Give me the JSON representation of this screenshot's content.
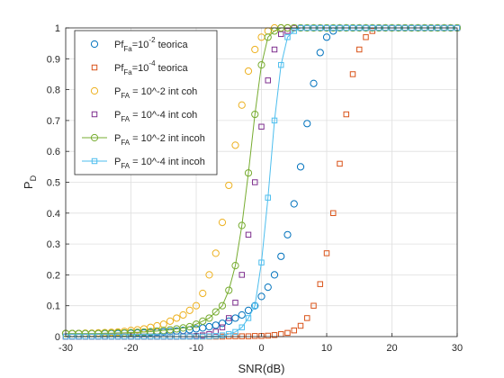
{
  "chart_data": {
    "type": "scatter",
    "title": "",
    "xlabel": "SNR(dB)",
    "ylabel": {
      "base": "P",
      "sub": "D"
    },
    "xlim": [
      -30,
      30
    ],
    "ylim": [
      0,
      1
    ],
    "xticks": [
      -30,
      -20,
      -10,
      0,
      10,
      20,
      30
    ],
    "yticks": [
      0,
      0.1,
      0.2,
      0.3,
      0.4,
      0.5,
      0.6,
      0.7,
      0.8,
      0.9,
      1
    ],
    "grid": true,
    "legend_position": "top-left",
    "legend": [
      {
        "parts": [
          [
            "Pf",
            ""
          ],
          [
            "Fa",
            "sub"
          ],
          [
            "=10",
            ""
          ],
          [
            "-2",
            "sup"
          ],
          [
            " teorica",
            ""
          ]
        ]
      },
      {
        "parts": [
          [
            "Pf",
            ""
          ],
          [
            "Fa",
            "sub"
          ],
          [
            "=10",
            ""
          ],
          [
            "-4",
            "sup"
          ],
          [
            " teorica",
            ""
          ]
        ]
      },
      {
        "parts": [
          [
            "P",
            ""
          ],
          [
            "FA",
            "sub"
          ],
          [
            " = 10^-2 int coh",
            ""
          ]
        ]
      },
      {
        "parts": [
          [
            "P",
            ""
          ],
          [
            "FA",
            "sub"
          ],
          [
            " = 10^-4 int coh",
            ""
          ]
        ]
      },
      {
        "parts": [
          [
            "P",
            ""
          ],
          [
            "FA",
            "sub"
          ],
          [
            " = 10^-2 int incoh",
            ""
          ]
        ]
      },
      {
        "parts": [
          [
            "P",
            ""
          ],
          [
            "FA",
            "sub"
          ],
          [
            " = 10^-4 int incoh",
            ""
          ]
        ]
      }
    ],
    "series": [
      {
        "color": "#0072BD",
        "marker": "circle",
        "line": false,
        "x": [
          -30,
          -29,
          -28,
          -27,
          -26,
          -25,
          -24,
          -23,
          -22,
          -21,
          -20,
          -19,
          -18,
          -17,
          -16,
          -15,
          -14,
          -13,
          -12,
          -11,
          -10,
          -9,
          -8,
          -7,
          -6,
          -5,
          -4,
          -3,
          -2,
          -1,
          0,
          1,
          2,
          3,
          4,
          5,
          6,
          7,
          8,
          9,
          10,
          11,
          12,
          13,
          14,
          15,
          16,
          17,
          18,
          19,
          20,
          21,
          22,
          23,
          24,
          25,
          26,
          27,
          28,
          29,
          30
        ],
        "y": [
          0.01,
          0.01,
          0.01,
          0.01,
          0.01,
          0.01,
          0.01,
          0.01,
          0.01,
          0.011,
          0.011,
          0.012,
          0.012,
          0.013,
          0.014,
          0.015,
          0.016,
          0.018,
          0.02,
          0.022,
          0.025,
          0.028,
          0.032,
          0.037,
          0.043,
          0.05,
          0.06,
          0.07,
          0.085,
          0.1,
          0.13,
          0.16,
          0.2,
          0.26,
          0.33,
          0.43,
          0.55,
          0.69,
          0.82,
          0.92,
          0.97,
          0.99,
          1,
          1,
          1,
          1,
          1,
          1,
          1,
          1,
          1,
          1,
          1,
          1,
          1,
          1,
          1,
          1,
          1,
          1,
          1
        ]
      },
      {
        "color": "#D95319",
        "marker": "square",
        "line": false,
        "x": [
          -30,
          -29,
          -28,
          -27,
          -26,
          -25,
          -24,
          -23,
          -22,
          -21,
          -20,
          -19,
          -18,
          -17,
          -16,
          -15,
          -14,
          -13,
          -12,
          -11,
          -10,
          -9,
          -8,
          -7,
          -6,
          -5,
          -4,
          -3,
          -2,
          -1,
          0,
          1,
          2,
          3,
          4,
          5,
          6,
          7,
          8,
          9,
          10,
          11,
          12,
          13,
          14,
          15,
          16,
          17,
          18,
          19,
          20,
          21,
          22,
          23,
          24,
          25,
          26,
          27,
          28,
          29,
          30
        ],
        "y": [
          0,
          0,
          0,
          0,
          0,
          0,
          0,
          0,
          0,
          0,
          0,
          0,
          0,
          0,
          0,
          0,
          0,
          0,
          0,
          0,
          0,
          0,
          0,
          0,
          0,
          0.001,
          0.001,
          0.001,
          0.001,
          0.002,
          0.002,
          0.003,
          0.005,
          0.008,
          0.012,
          0.02,
          0.035,
          0.06,
          0.1,
          0.17,
          0.27,
          0.4,
          0.56,
          0.72,
          0.85,
          0.93,
          0.97,
          0.99,
          1,
          1,
          1,
          1,
          1,
          1,
          1,
          1,
          1,
          1,
          1,
          1,
          1
        ]
      },
      {
        "color": "#EDB120",
        "marker": "circle",
        "line": false,
        "x": [
          -30,
          -29,
          -28,
          -27,
          -26,
          -25,
          -24,
          -23,
          -22,
          -21,
          -20,
          -19,
          -18,
          -17,
          -16,
          -15,
          -14,
          -13,
          -12,
          -11,
          -10,
          -9,
          -8,
          -7,
          -6,
          -5,
          -4,
          -3,
          -2,
          -1,
          0,
          1,
          2,
          3,
          4,
          5,
          6,
          7,
          8,
          9,
          10,
          11,
          12,
          13,
          14,
          15,
          16,
          17,
          18,
          19,
          20,
          21,
          22,
          23,
          24,
          25,
          26,
          27,
          28,
          29,
          30
        ],
        "y": [
          0.01,
          0.01,
          0.01,
          0.011,
          0.011,
          0.012,
          0.013,
          0.014,
          0.015,
          0.017,
          0.02,
          0.022,
          0.025,
          0.03,
          0.035,
          0.04,
          0.05,
          0.06,
          0.07,
          0.085,
          0.1,
          0.14,
          0.2,
          0.27,
          0.37,
          0.49,
          0.62,
          0.75,
          0.86,
          0.93,
          0.97,
          0.99,
          1,
          1,
          1,
          1,
          1,
          1,
          1,
          1,
          1,
          1,
          1,
          1,
          1,
          1,
          1,
          1,
          1,
          1,
          1,
          1,
          1,
          1,
          1,
          1,
          1,
          1,
          1,
          1,
          1
        ]
      },
      {
        "color": "#7E2F8E",
        "marker": "square",
        "line": false,
        "x": [
          -30,
          -29,
          -28,
          -27,
          -26,
          -25,
          -24,
          -23,
          -22,
          -21,
          -20,
          -19,
          -18,
          -17,
          -16,
          -15,
          -14,
          -13,
          -12,
          -11,
          -10,
          -9,
          -8,
          -7,
          -6,
          -5,
          -4,
          -3,
          -2,
          -1,
          0,
          1,
          2,
          3,
          4,
          5,
          6,
          7,
          8,
          9,
          10,
          11,
          12,
          13,
          14,
          15,
          16,
          17,
          18,
          19,
          20,
          21,
          22,
          23,
          24,
          25,
          26,
          27,
          28,
          29,
          30
        ],
        "y": [
          0,
          0,
          0,
          0,
          0,
          0,
          0,
          0,
          0,
          0,
          0,
          0,
          0,
          0,
          0,
          0,
          0,
          0,
          0.001,
          0.001,
          0.002,
          0.004,
          0.008,
          0.016,
          0.03,
          0.06,
          0.11,
          0.2,
          0.33,
          0.5,
          0.68,
          0.83,
          0.93,
          0.98,
          0.99,
          1,
          1,
          1,
          1,
          1,
          1,
          1,
          1,
          1,
          1,
          1,
          1,
          1,
          1,
          1,
          1,
          1,
          1,
          1,
          1,
          1,
          1,
          1,
          1,
          1,
          1
        ]
      },
      {
        "color": "#77AC30",
        "marker": "circle",
        "line": true,
        "x": [
          -30,
          -29,
          -28,
          -27,
          -26,
          -25,
          -24,
          -23,
          -22,
          -21,
          -20,
          -19,
          -18,
          -17,
          -16,
          -15,
          -14,
          -13,
          -12,
          -11,
          -10,
          -9,
          -8,
          -7,
          -6,
          -5,
          -4,
          -3,
          -2,
          -1,
          0,
          1,
          2,
          3,
          4,
          5,
          6,
          7,
          8,
          9,
          10,
          11,
          12,
          13,
          14,
          15,
          16,
          17,
          18,
          19,
          20,
          21,
          22,
          23,
          24,
          25,
          26,
          27,
          28,
          29,
          30
        ],
        "y": [
          0.01,
          0.01,
          0.01,
          0.01,
          0.01,
          0.01,
          0.011,
          0.011,
          0.012,
          0.012,
          0.013,
          0.014,
          0.015,
          0.016,
          0.018,
          0.02,
          0.022,
          0.025,
          0.028,
          0.032,
          0.04,
          0.05,
          0.06,
          0.08,
          0.1,
          0.15,
          0.23,
          0.36,
          0.53,
          0.72,
          0.88,
          0.97,
          0.99,
          1,
          1,
          1,
          1,
          1,
          1,
          1,
          1,
          1,
          1,
          1,
          1,
          1,
          1,
          1,
          1,
          1,
          1,
          1,
          1,
          1,
          1,
          1,
          1,
          1,
          1,
          1,
          1
        ]
      },
      {
        "color": "#4DBEEE",
        "marker": "square",
        "line": true,
        "x": [
          -30,
          -29,
          -28,
          -27,
          -26,
          -25,
          -24,
          -23,
          -22,
          -21,
          -20,
          -19,
          -18,
          -17,
          -16,
          -15,
          -14,
          -13,
          -12,
          -11,
          -10,
          -9,
          -8,
          -7,
          -6,
          -5,
          -4,
          -3,
          -2,
          -1,
          0,
          1,
          2,
          3,
          4,
          5,
          6,
          7,
          8,
          9,
          10,
          11,
          12,
          13,
          14,
          15,
          16,
          17,
          18,
          19,
          20,
          21,
          22,
          23,
          24,
          25,
          26,
          27,
          28,
          29,
          30
        ],
        "y": [
          0,
          0,
          0,
          0,
          0,
          0,
          0,
          0,
          0,
          0,
          0,
          0,
          0,
          0,
          0,
          0,
          0,
          0,
          0,
          0,
          0,
          0,
          0.001,
          0.002,
          0.004,
          0.008,
          0.015,
          0.03,
          0.06,
          0.1,
          0.24,
          0.45,
          0.7,
          0.88,
          0.97,
          0.99,
          1,
          1,
          1,
          1,
          1,
          1,
          1,
          1,
          1,
          1,
          1,
          1,
          1,
          1,
          1,
          1,
          1,
          1,
          1,
          1,
          1,
          1,
          1,
          1,
          1
        ]
      }
    ]
  }
}
